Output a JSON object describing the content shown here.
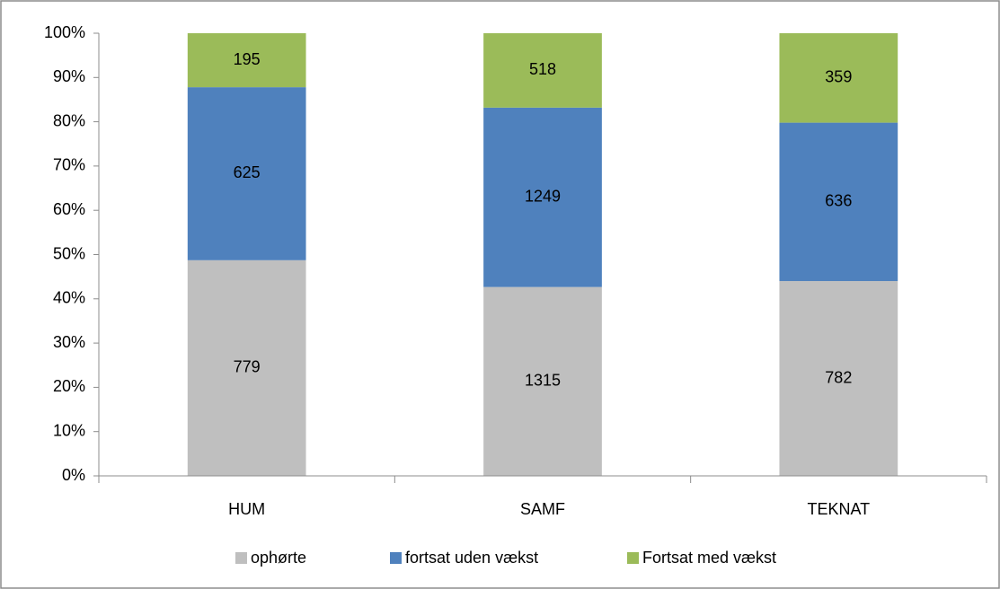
{
  "chart_data": {
    "type": "stacked_percent_bar",
    "categories": [
      "HUM",
      "SAMF",
      "TEKNAT"
    ],
    "series": [
      {
        "name": "ophørte",
        "color": "#bfbfbf",
        "values": [
          779,
          1315,
          782
        ]
      },
      {
        "name": "fortsat uden vækst",
        "color": "#4f81bd",
        "values": [
          625,
          1249,
          636
        ]
      },
      {
        "name": "Fortsat med vækst",
        "color": "#9bbb59",
        "values": [
          195,
          518,
          359
        ]
      }
    ],
    "ylim": [
      0,
      100
    ],
    "yticks": [
      {
        "value": 0,
        "label": "0%"
      },
      {
        "value": 10,
        "label": "10%"
      },
      {
        "value": 20,
        "label": "20%"
      },
      {
        "value": 30,
        "label": "30%"
      },
      {
        "value": 40,
        "label": "40%"
      },
      {
        "value": 50,
        "label": "50%"
      },
      {
        "value": 60,
        "label": "60%"
      },
      {
        "value": 70,
        "label": "70%"
      },
      {
        "value": 80,
        "label": "80%"
      },
      {
        "value": 90,
        "label": "90%"
      },
      {
        "value": 100,
        "label": "100%"
      }
    ],
    "grid": false,
    "legend": "bottom"
  }
}
